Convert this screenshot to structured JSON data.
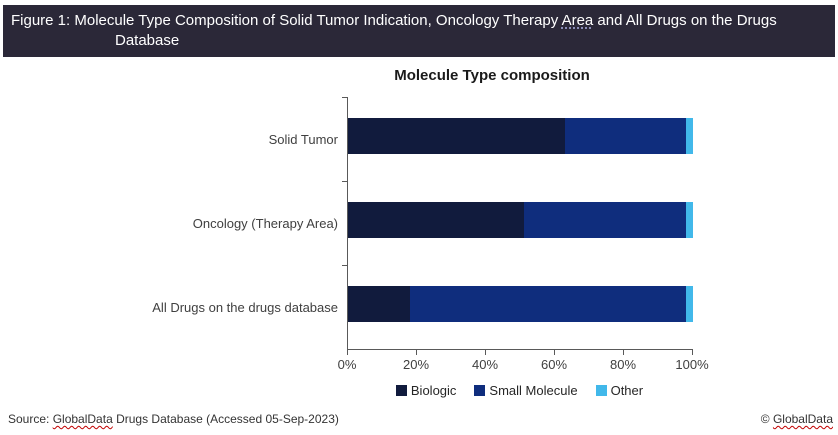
{
  "header": {
    "bg_color": "#2b2838",
    "title_prefix": "Figure 1: Molecule Type Composition of Solid Tumor Indication, Oncology Therapy ",
    "title_underlined_word": "Area",
    "title_suffix": " and All Drugs on the Drugs",
    "title_line2": "Database"
  },
  "chart_data": {
    "type": "bar",
    "orientation": "horizontal",
    "stacked": true,
    "title": "Molecule Type composition",
    "categories": [
      "Solid Tumor",
      "Oncology (Therapy Area)",
      "All Drugs on the drugs database"
    ],
    "series": [
      {
        "name": "Biologic",
        "color": "#111b3d",
        "values": [
          63,
          51,
          18
        ]
      },
      {
        "name": "Small Molecule",
        "color": "#0f2d7d",
        "values": [
          35,
          47,
          80
        ]
      },
      {
        "name": "Other",
        "color": "#41b8ea",
        "values": [
          2,
          2,
          2
        ]
      }
    ],
    "x_ticks": [
      "0%",
      "20%",
      "40%",
      "60%",
      "80%",
      "100%"
    ],
    "xlim": [
      0,
      100
    ],
    "unit": "%",
    "grid": false,
    "legend_position": "bottom",
    "axis_color": "#595959"
  },
  "footer": {
    "source_prefix": "Source: ",
    "source_brand": "GlobalData",
    "source_suffix": " Drugs Database (Accessed 05-Sep-2023)",
    "copyright_prefix": "© ",
    "copyright_brand": "GlobalData"
  }
}
